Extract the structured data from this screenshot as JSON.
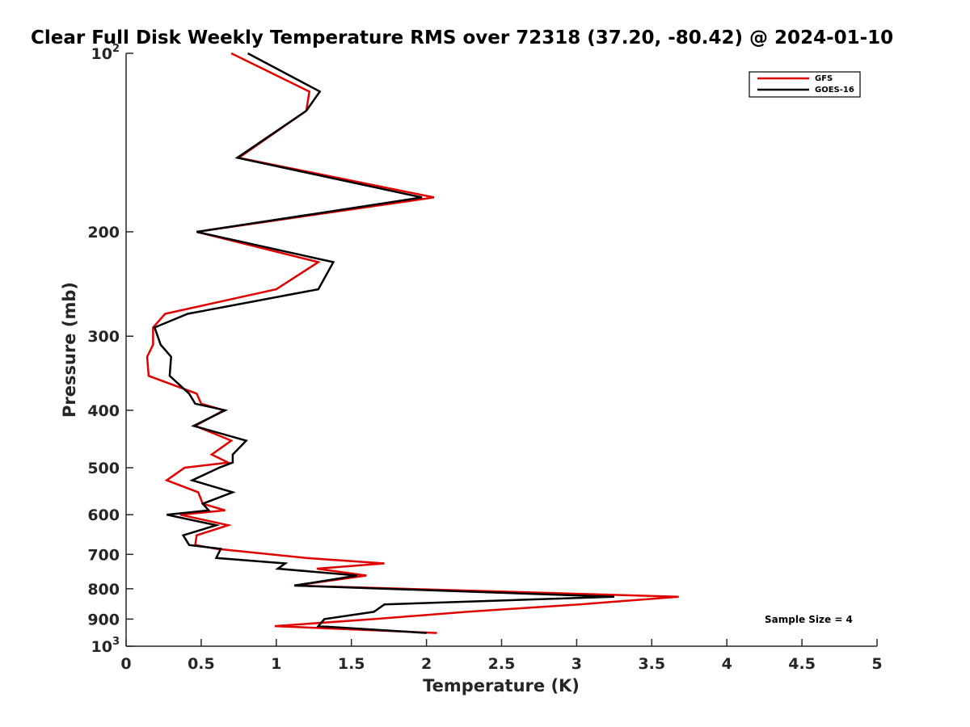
{
  "chart_data": {
    "type": "line",
    "title": "Clear Full Disk Weekly Temperature RMS over 72318 (37.20, -80.42) @ 2024-01-10",
    "xlabel": "Temperature (K)",
    "ylabel": "Pressure (mb)",
    "xlim": [
      0,
      5
    ],
    "ylim": [
      100,
      1000
    ],
    "y_scale": "log",
    "y_reversed": true,
    "x_ticks": [
      0,
      0.5,
      1,
      1.5,
      2,
      2.5,
      3,
      3.5,
      4,
      4.5,
      5
    ],
    "x_tick_labels": [
      "0",
      "0.5",
      "1",
      "1.5",
      "2",
      "2.5",
      "3",
      "3.5",
      "4",
      "4.5",
      "5"
    ],
    "y_ticks": [
      100,
      200,
      300,
      400,
      500,
      600,
      700,
      800,
      900,
      1000
    ],
    "y_tick_labels": [
      {
        "base": "10",
        "exp": "2"
      },
      {
        "base": "200",
        "exp": ""
      },
      {
        "base": "300",
        "exp": ""
      },
      {
        "base": "400",
        "exp": ""
      },
      {
        "base": "500",
        "exp": ""
      },
      {
        "base": "600",
        "exp": ""
      },
      {
        "base": "700",
        "exp": ""
      },
      {
        "base": "800",
        "exp": ""
      },
      {
        "base": "900",
        "exp": ""
      },
      {
        "base": "10",
        "exp": "3"
      }
    ],
    "grid": false,
    "legend_position": "top-right",
    "series": [
      {
        "name": "GFS",
        "color": "#e00000",
        "points": [
          [
            0.7,
            100
          ],
          [
            1.22,
            116
          ],
          [
            1.2,
            125
          ],
          [
            0.75,
            150
          ],
          [
            2.05,
            175
          ],
          [
            0.47,
            200
          ],
          [
            1.28,
            225
          ],
          [
            1.0,
            250
          ],
          [
            0.26,
            275
          ],
          [
            0.18,
            290
          ],
          [
            0.18,
            310
          ],
          [
            0.14,
            325
          ],
          [
            0.15,
            350
          ],
          [
            0.47,
            375
          ],
          [
            0.5,
            390
          ],
          [
            0.65,
            400
          ],
          [
            0.46,
            425
          ],
          [
            0.7,
            450
          ],
          [
            0.57,
            475
          ],
          [
            0.68,
            490
          ],
          [
            0.39,
            500
          ],
          [
            0.27,
            525
          ],
          [
            0.48,
            550
          ],
          [
            0.51,
            575
          ],
          [
            0.66,
            590
          ],
          [
            0.36,
            600
          ],
          [
            0.68,
            625
          ],
          [
            0.47,
            650
          ],
          [
            0.46,
            675
          ],
          [
            0.6,
            685
          ],
          [
            1.2,
            710
          ],
          [
            1.72,
            725
          ],
          [
            1.27,
            740
          ],
          [
            1.6,
            760
          ],
          [
            1.12,
            790
          ],
          [
            3.68,
            825
          ],
          [
            3.02,
            850
          ],
          [
            2.27,
            875
          ],
          [
            1.65,
            900
          ],
          [
            0.99,
            925
          ],
          [
            2.07,
            950
          ]
        ]
      },
      {
        "name": "GOES-16",
        "color": "#000000",
        "points": [
          [
            0.81,
            100
          ],
          [
            1.29,
            116
          ],
          [
            1.2,
            125
          ],
          [
            0.74,
            150
          ],
          [
            1.97,
            175
          ],
          [
            0.47,
            200
          ],
          [
            1.38,
            225
          ],
          [
            1.28,
            250
          ],
          [
            0.41,
            275
          ],
          [
            0.19,
            290
          ],
          [
            0.23,
            310
          ],
          [
            0.3,
            325
          ],
          [
            0.29,
            350
          ],
          [
            0.42,
            375
          ],
          [
            0.46,
            390
          ],
          [
            0.66,
            400
          ],
          [
            0.45,
            425
          ],
          [
            0.8,
            450
          ],
          [
            0.71,
            475
          ],
          [
            0.71,
            490
          ],
          [
            0.62,
            500
          ],
          [
            0.44,
            525
          ],
          [
            0.71,
            550
          ],
          [
            0.51,
            575
          ],
          [
            0.55,
            590
          ],
          [
            0.27,
            600
          ],
          [
            0.6,
            625
          ],
          [
            0.38,
            650
          ],
          [
            0.42,
            675
          ],
          [
            0.63,
            685
          ],
          [
            0.6,
            710
          ],
          [
            1.06,
            725
          ],
          [
            1.01,
            740
          ],
          [
            1.54,
            760
          ],
          [
            1.12,
            790
          ],
          [
            3.25,
            825
          ],
          [
            1.72,
            850
          ],
          [
            1.65,
            875
          ],
          [
            1.32,
            900
          ],
          [
            1.28,
            925
          ],
          [
            2.0,
            950
          ]
        ]
      }
    ],
    "annotation": "Sample Size = 4"
  }
}
